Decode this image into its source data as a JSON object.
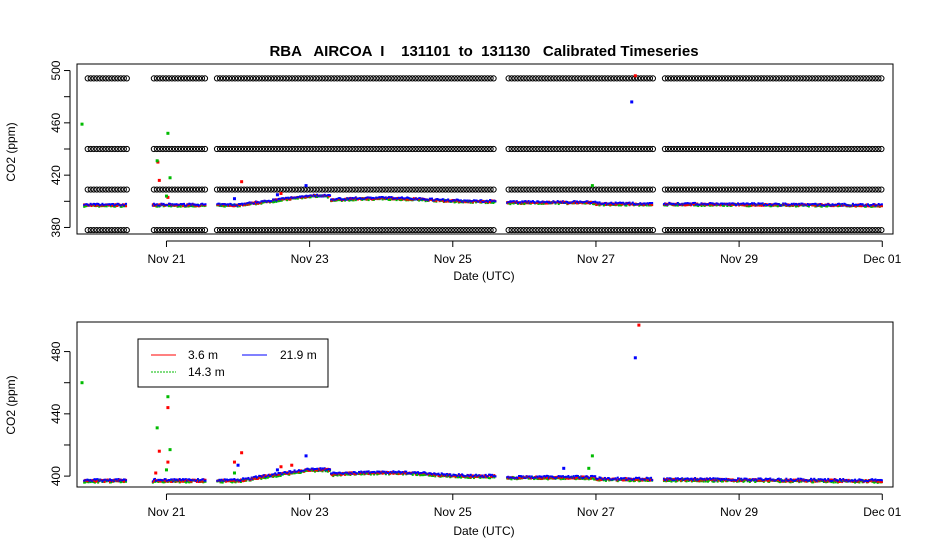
{
  "chart_data": [
    {
      "type": "scatter",
      "title": "RBA   AIRCOA  I    131101  to  131130   Calibrated Timeseries",
      "xlabel": "Date (UTC)",
      "ylabel": "CO2 (ppm)",
      "x_ticks": [
        "Nov 21",
        "Nov 23",
        "Nov 25",
        "Nov 27",
        "Nov 29",
        "Dec 01"
      ],
      "y_ticks": [
        "380",
        "420",
        "460",
        "500"
      ],
      "xlim": [
        19.75,
        31.15
      ],
      "ylim": [
        375,
        505
      ],
      "grid": false,
      "calibration_series": {
        "name": "",
        "marker": "open-circle",
        "levels": [
          378,
          409,
          440,
          494
        ],
        "gaps_days": [
          [
            20.45,
            20.8
          ],
          [
            21.55,
            21.7
          ],
          [
            25.6,
            25.75
          ],
          [
            27.8,
            27.95
          ]
        ]
      },
      "series": [
        {
          "name": "3.6 m",
          "color": "#ff0000",
          "points": [
            [
              20.9,
              416
            ],
            [
              20.88,
              430
            ],
            [
              21.02,
              403
            ],
            [
              22.05,
              415
            ],
            [
              22.6,
              406
            ],
            [
              27.55,
              496
            ]
          ]
        },
        {
          "name": "14.3 m",
          "color": "#00bb00",
          "points": [
            [
              19.82,
              459
            ],
            [
              20.87,
              431
            ],
            [
              21.02,
              452
            ],
            [
              21.05,
              418
            ],
            [
              21.0,
              404
            ],
            [
              26.95,
              412
            ]
          ]
        },
        {
          "name": "21.9 m",
          "color": "#0000ff",
          "points": [
            [
              21.95,
              402
            ],
            [
              22.55,
              405
            ],
            [
              22.95,
              412
            ],
            [
              27.5,
              476
            ]
          ]
        }
      ]
    },
    {
      "type": "scatter",
      "title": "",
      "xlabel": "Date (UTC)",
      "ylabel": "CO2 (ppm)",
      "x_ticks": [
        "Nov 21",
        "Nov 23",
        "Nov 25",
        "Nov 27",
        "Nov 29",
        "Dec 01"
      ],
      "y_ticks": [
        "400",
        "440",
        "480"
      ],
      "xlim": [
        19.75,
        31.15
      ],
      "ylim": [
        393,
        499
      ],
      "grid": false,
      "legend": {
        "placement": "top-left",
        "entries": [
          {
            "label": "3.6 m",
            "color": "#ff0000"
          },
          {
            "label": "21.9 m",
            "color": "#0000ff"
          },
          {
            "label": "14.3 m",
            "color": "#00bb00"
          }
        ]
      },
      "series": [
        {
          "name": "3.6 m",
          "color": "#ff0000",
          "points": [
            [
              20.85,
              402
            ],
            [
              20.9,
              416
            ],
            [
              21.02,
              409
            ],
            [
              21.02,
              444
            ],
            [
              21.95,
              409
            ],
            [
              22.05,
              415
            ],
            [
              22.6,
              406
            ],
            [
              22.75,
              407
            ],
            [
              27.6,
              497
            ]
          ]
        },
        {
          "name": "14.3 m",
          "color": "#00bb00",
          "points": [
            [
              19.82,
              460
            ],
            [
              20.87,
              431
            ],
            [
              21.02,
              451
            ],
            [
              21.05,
              417
            ],
            [
              21.0,
              404
            ],
            [
              21.95,
              402
            ],
            [
              26.95,
              413
            ],
            [
              26.9,
              405
            ]
          ]
        },
        {
          "name": "21.9 m",
          "color": "#0000ff",
          "points": [
            [
              22.0,
              407
            ],
            [
              22.55,
              404
            ],
            [
              22.95,
              413
            ],
            [
              26.55,
              405
            ],
            [
              27.55,
              476
            ]
          ]
        }
      ]
    }
  ]
}
